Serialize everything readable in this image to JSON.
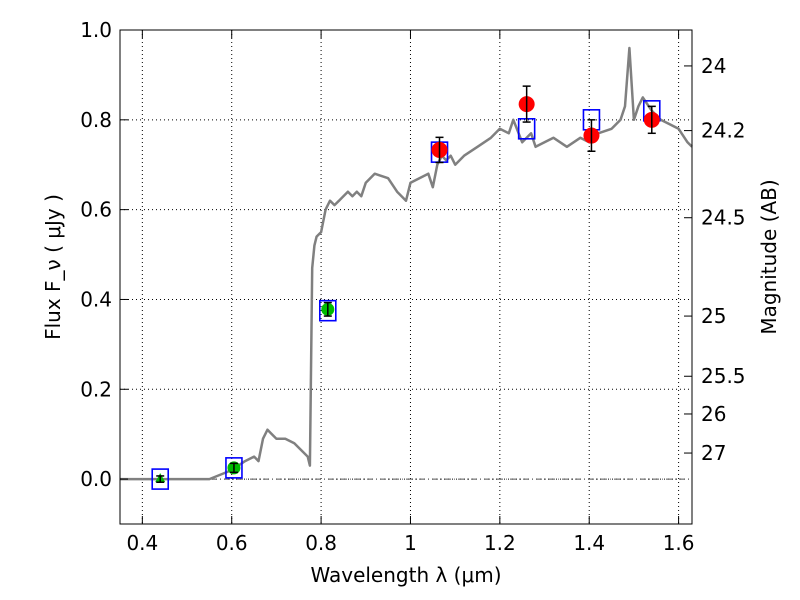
{
  "chart_data": {
    "type": "scatter",
    "xlabel": "Wavelength  λ (μm)",
    "ylabel": "Flux  F_ν  ( μJy )",
    "ylabel_right": "Magnitude (AB)",
    "xlim": [
      0.35,
      1.63
    ],
    "ylim": [
      -0.1,
      1.0
    ],
    "grid": true,
    "x_ticks": [
      {
        "v": 0.4,
        "label": "0.4"
      },
      {
        "v": 0.6,
        "label": "0.6"
      },
      {
        "v": 0.8,
        "label": "0.8"
      },
      {
        "v": 1.0,
        "label": "1"
      },
      {
        "v": 1.2,
        "label": "1.2"
      },
      {
        "v": 1.4,
        "label": "1.4"
      },
      {
        "v": 1.6,
        "label": "1.6"
      }
    ],
    "y_ticks": [
      {
        "v": 0.0,
        "label": "0.0"
      },
      {
        "v": 0.2,
        "label": "0.2"
      },
      {
        "v": 0.4,
        "label": "0.4"
      },
      {
        "v": 0.6,
        "label": "0.6"
      },
      {
        "v": 0.8,
        "label": "0.8"
      },
      {
        "v": 1.0,
        "label": "1.0"
      }
    ],
    "mag_ticks": [
      {
        "v": 0.92,
        "label": "24"
      },
      {
        "v": 0.776,
        "label": "24.2"
      },
      {
        "v": 0.582,
        "label": "24.5"
      },
      {
        "v": 0.363,
        "label": "25"
      },
      {
        "v": 0.229,
        "label": "25.5"
      },
      {
        "v": 0.145,
        "label": "26"
      },
      {
        "v": 0.058,
        "label": "27"
      }
    ],
    "colors": {
      "model": "#808080",
      "photometry_red": "#ff0000",
      "photometry_green": "#00bb00",
      "model_box": "#0000ff",
      "error_bar": "#000000"
    },
    "model_spectrum": {
      "x": [
        0.35,
        0.55,
        0.6,
        0.63,
        0.65,
        0.66,
        0.67,
        0.68,
        0.69,
        0.7,
        0.72,
        0.74,
        0.75,
        0.76,
        0.77,
        0.775,
        0.78,
        0.785,
        0.79,
        0.8,
        0.81,
        0.82,
        0.83,
        0.84,
        0.85,
        0.86,
        0.87,
        0.88,
        0.89,
        0.9,
        0.92,
        0.95,
        0.97,
        0.99,
        1.0,
        1.02,
        1.04,
        1.05,
        1.06,
        1.07,
        1.08,
        1.09,
        1.1,
        1.12,
        1.15,
        1.18,
        1.2,
        1.22,
        1.23,
        1.25,
        1.27,
        1.28,
        1.3,
        1.32,
        1.35,
        1.38,
        1.4,
        1.42,
        1.45,
        1.47,
        1.48,
        1.49,
        1.5,
        1.51,
        1.52,
        1.54,
        1.56,
        1.58,
        1.6,
        1.62,
        1.63
      ],
      "y": [
        0.0,
        0.0,
        0.02,
        0.04,
        0.05,
        0.04,
        0.09,
        0.11,
        0.1,
        0.09,
        0.09,
        0.08,
        0.07,
        0.06,
        0.05,
        0.03,
        0.47,
        0.52,
        0.54,
        0.55,
        0.6,
        0.62,
        0.61,
        0.62,
        0.63,
        0.64,
        0.63,
        0.64,
        0.63,
        0.66,
        0.68,
        0.67,
        0.64,
        0.62,
        0.66,
        0.67,
        0.68,
        0.65,
        0.7,
        0.72,
        0.71,
        0.72,
        0.7,
        0.72,
        0.74,
        0.76,
        0.78,
        0.77,
        0.8,
        0.75,
        0.77,
        0.74,
        0.75,
        0.76,
        0.74,
        0.76,
        0.75,
        0.77,
        0.78,
        0.8,
        0.83,
        0.96,
        0.8,
        0.83,
        0.85,
        0.82,
        0.8,
        0.79,
        0.78,
        0.75,
        0.74
      ]
    },
    "model_boxes": [
      {
        "x": 0.44,
        "y": 0.0
      },
      {
        "x": 0.605,
        "y": 0.025
      },
      {
        "x": 0.815,
        "y": 0.375
      },
      {
        "x": 1.065,
        "y": 0.728
      },
      {
        "x": 1.26,
        "y": 0.78
      },
      {
        "x": 1.405,
        "y": 0.8
      },
      {
        "x": 1.54,
        "y": 0.82
      }
    ],
    "photometry": [
      {
        "x": 0.44,
        "y": 0.0,
        "err": 0.007,
        "color": "green",
        "marker": "triangle"
      },
      {
        "x": 0.605,
        "y": 0.025,
        "err": 0.01,
        "color": "green",
        "marker": "circle"
      },
      {
        "x": 0.815,
        "y": 0.378,
        "err": 0.015,
        "color": "green",
        "marker": "circle"
      },
      {
        "x": 1.065,
        "y": 0.733,
        "err": 0.028,
        "color": "red",
        "marker": "circle"
      },
      {
        "x": 1.26,
        "y": 0.835,
        "err": 0.04,
        "color": "red",
        "marker": "circle"
      },
      {
        "x": 1.405,
        "y": 0.765,
        "err": 0.035,
        "color": "red",
        "marker": "circle"
      },
      {
        "x": 1.54,
        "y": 0.8,
        "err": 0.03,
        "color": "red",
        "marker": "circle"
      }
    ]
  }
}
